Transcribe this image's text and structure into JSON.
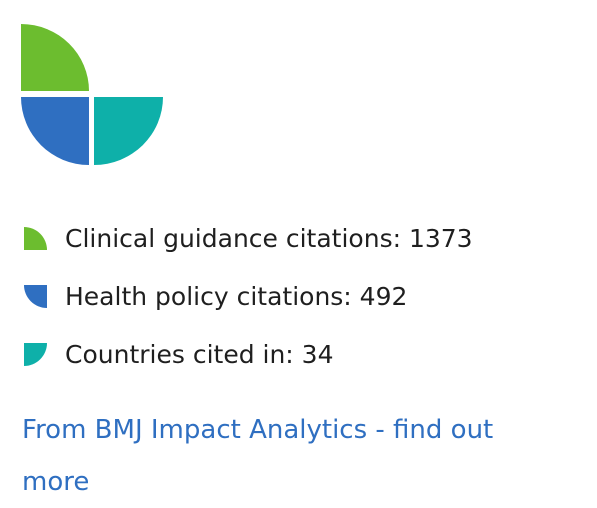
{
  "colors": {
    "clinical": "#6cbd2f",
    "policy": "#2f6fc1",
    "countries": "#0eb0a9",
    "link": "#2f6fc1",
    "text": "#1f1f1f"
  },
  "logo": {
    "icon": "bmj-impact-analytics-logo"
  },
  "metrics": {
    "clinical": {
      "icon": "green-quarter-icon",
      "label": "Clinical guidance citations: 1373"
    },
    "policy": {
      "icon": "blue-quarter-icon",
      "label": "Health policy citations: 492"
    },
    "countries": {
      "icon": "teal-quarter-icon",
      "label": "Countries cited in: 34"
    }
  },
  "footer": {
    "link_text": "From BMJ Impact Analytics - find out more"
  }
}
